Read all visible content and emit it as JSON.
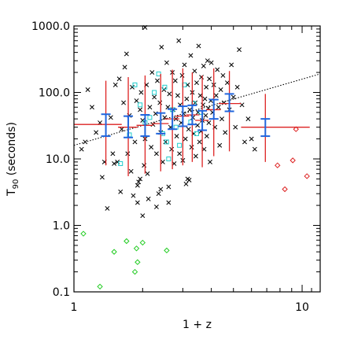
{
  "chart_data": {
    "type": "scatter",
    "xscale": "log",
    "yscale": "log",
    "xlim": [
      1,
      12
    ],
    "ylim": [
      0.1,
      1000
    ],
    "xlabel": "1 + z",
    "ylabel_main": "T",
    "ylabel_sub": "90",
    "ylabel_rest": " (seconds)",
    "xticks": [
      {
        "value": 1,
        "label": "1"
      },
      {
        "value": 10,
        "label": "10"
      }
    ],
    "yticks": [
      {
        "value": 0.1,
        "label": "0.1"
      },
      {
        "value": 1,
        "label": "1.0"
      },
      {
        "value": 10,
        "label": "10.0"
      },
      {
        "value": 100,
        "label": "100.0"
      },
      {
        "value": 1000,
        "label": "1000.0"
      }
    ],
    "grid": false,
    "colors": {
      "cross": "#000000",
      "cyan": "#22cccc",
      "green": "#22cc22",
      "red_marker": "#dd2222",
      "red_bar": "#dd2222",
      "blue_bar": "#2266dd",
      "fit": "#000000"
    },
    "fit_line": {
      "x": [
        1,
        12
      ],
      "y": [
        16,
        190
      ]
    },
    "series": [
      {
        "marker": "cross",
        "points": [
          [
            1.08,
            14
          ],
          [
            1.12,
            18
          ],
          [
            1.15,
            110
          ],
          [
            1.2,
            60
          ],
          [
            1.25,
            25
          ],
          [
            1.3,
            35
          ],
          [
            1.33,
            5.3
          ],
          [
            1.36,
            9
          ],
          [
            1.4,
            1.8
          ],
          [
            1.45,
            42
          ],
          [
            1.48,
            12
          ],
          [
            1.5,
            8.5
          ],
          [
            1.52,
            130
          ],
          [
            1.55,
            9
          ],
          [
            1.58,
            160
          ],
          [
            1.6,
            3.2
          ],
          [
            1.62,
            28
          ],
          [
            1.65,
            70
          ],
          [
            1.67,
            240
          ],
          [
            1.7,
            380
          ],
          [
            1.72,
            12
          ],
          [
            1.75,
            45
          ],
          [
            1.78,
            6.5
          ],
          [
            1.8,
            120
          ],
          [
            1.82,
            2.8
          ],
          [
            1.85,
            18
          ],
          [
            1.88,
            75
          ],
          [
            1.9,
            4
          ],
          [
            1.92,
            4.5
          ],
          [
            1.95,
            55
          ],
          [
            1.97,
            100
          ],
          [
            2.0,
            38
          ],
          [
            2.03,
            8
          ],
          [
            2.05,
            20
          ],
          [
            2.08,
            130
          ],
          [
            2.1,
            6
          ],
          [
            2.12,
            2.5
          ],
          [
            2.15,
            60
          ],
          [
            2.18,
            15
          ],
          [
            2.2,
            200
          ],
          [
            2.22,
            33
          ],
          [
            2.25,
            85
          ],
          [
            2.28,
            48
          ],
          [
            2.3,
            12
          ],
          [
            2.32,
            150
          ],
          [
            2.35,
            3
          ],
          [
            2.38,
            70
          ],
          [
            2.4,
            25
          ],
          [
            2.42,
            480
          ],
          [
            2.45,
            9
          ],
          [
            2.48,
            110
          ],
          [
            2.5,
            42
          ],
          [
            2.52,
            18
          ],
          [
            2.55,
            280
          ],
          [
            2.58,
            60
          ],
          [
            2.6,
            2.2
          ],
          [
            2.62,
            95
          ],
          [
            2.65,
            30
          ],
          [
            2.68,
            14
          ],
          [
            2.7,
            200
          ],
          [
            2.72,
            55
          ],
          [
            2.75,
            8.5
          ],
          [
            2.78,
            150
          ],
          [
            2.8,
            40
          ],
          [
            2.82,
            22
          ],
          [
            2.85,
            90
          ],
          [
            2.88,
            600
          ],
          [
            2.9,
            12
          ],
          [
            2.92,
            65
          ],
          [
            2.95,
            35
          ],
          [
            2.98,
            180
          ],
          [
            3.0,
            9.5
          ],
          [
            3.02,
            48
          ],
          [
            3.05,
            260
          ],
          [
            3.08,
            20
          ],
          [
            3.1,
            4.2
          ],
          [
            3.12,
            80
          ],
          [
            3.15,
            130
          ],
          [
            3.18,
            28
          ],
          [
            3.2,
            4.8
          ],
          [
            3.22,
            55
          ],
          [
            3.25,
            360
          ],
          [
            3.28,
            15
          ],
          [
            3.3,
            100
          ],
          [
            3.32,
            42
          ],
          [
            3.35,
            24
          ],
          [
            3.38,
            210
          ],
          [
            3.4,
            70
          ],
          [
            3.42,
            11
          ],
          [
            3.45,
            140
          ],
          [
            3.48,
            32
          ],
          [
            3.5,
            50
          ],
          [
            3.52,
            500
          ],
          [
            3.55,
            18
          ],
          [
            3.58,
            90
          ],
          [
            3.6,
            26
          ],
          [
            3.62,
            170
          ],
          [
            3.65,
            38
          ],
          [
            3.68,
            65
          ],
          [
            3.7,
            250
          ],
          [
            3.72,
            14
          ],
          [
            3.75,
            80
          ],
          [
            3.78,
            45
          ],
          [
            3.8,
            120
          ],
          [
            3.82,
            22
          ],
          [
            3.85,
            300
          ],
          [
            3.88,
            58
          ],
          [
            3.9,
            35
          ],
          [
            3.92,
            160
          ],
          [
            3.95,
            9
          ],
          [
            3.98,
            75
          ],
          [
            4.0,
            280
          ],
          [
            4.05,
            50
          ],
          [
            4.1,
            130
          ],
          [
            4.15,
            30
          ],
          [
            4.2,
            90
          ],
          [
            4.25,
            220
          ],
          [
            4.3,
            60
          ],
          [
            4.35,
            16
          ],
          [
            4.4,
            110
          ],
          [
            4.45,
            40
          ],
          [
            4.5,
            180
          ],
          [
            4.55,
            70
          ],
          [
            4.6,
            25
          ],
          [
            4.7,
            140
          ],
          [
            4.8,
            55
          ],
          [
            4.9,
            260
          ],
          [
            5.0,
            85
          ],
          [
            5.1,
            30
          ],
          [
            5.2,
            120
          ],
          [
            5.3,
            440
          ],
          [
            5.45,
            65
          ],
          [
            5.6,
            18
          ],
          [
            5.8,
            40
          ],
          [
            6.0,
            20
          ],
          [
            6.2,
            14
          ],
          [
            2.05,
            950
          ],
          [
            1.95,
            5
          ],
          [
            2.4,
            3.5
          ],
          [
            3.15,
            5
          ],
          [
            1.9,
            2.2
          ],
          [
            2.3,
            1.9
          ],
          [
            2.6,
            3.8
          ],
          [
            2.0,
            1.4
          ]
        ]
      },
      {
        "marker": "cyan-square",
        "points": [
          [
            1.6,
            8.5
          ],
          [
            1.75,
            23
          ],
          [
            1.85,
            130
          ],
          [
            1.95,
            65
          ],
          [
            2.05,
            35
          ],
          [
            2.25,
            100
          ],
          [
            2.35,
            190
          ],
          [
            2.45,
            24
          ],
          [
            2.55,
            18
          ],
          [
            2.6,
            10
          ],
          [
            2.7,
            55
          ],
          [
            2.8,
            30
          ],
          [
            2.9,
            16
          ],
          [
            3.05,
            130
          ],
          [
            3.25,
            36
          ],
          [
            3.45,
            24
          ],
          [
            3.6,
            50
          ],
          [
            2.15,
            42
          ],
          [
            3.35,
            68
          ],
          [
            2.5,
            120
          ]
        ]
      },
      {
        "marker": "green-diamond",
        "points": [
          [
            1.1,
            0.75
          ],
          [
            1.3,
            0.12
          ],
          [
            1.5,
            0.4
          ],
          [
            1.7,
            0.58
          ],
          [
            1.85,
            0.2
          ],
          [
            1.88,
            0.45
          ],
          [
            1.9,
            0.28
          ],
          [
            2.0,
            0.55
          ],
          [
            2.55,
            0.42
          ]
        ]
      },
      {
        "marker": "red-diamond",
        "points": [
          [
            7.8,
            8
          ],
          [
            8.4,
            3.5
          ],
          [
            9.1,
            9.5
          ],
          [
            9.4,
            28
          ],
          [
            10.5,
            5.5
          ]
        ]
      }
    ],
    "binned": [
      {
        "x": 1.38,
        "x_lo": 1.0,
        "x_hi": 1.62,
        "y": 33,
        "y_lo": 8,
        "y_hi": 150,
        "blue_lo": 22,
        "blue_hi": 47
      },
      {
        "x": 1.73,
        "x_lo": 1.56,
        "x_hi": 1.9,
        "y": 30,
        "y_lo": 5.5,
        "y_hi": 170,
        "blue_lo": 21,
        "blue_hi": 44
      },
      {
        "x": 2.05,
        "x_lo": 1.88,
        "x_hi": 2.22,
        "y": 32,
        "y_lo": 6,
        "y_hi": 180,
        "blue_lo": 22,
        "blue_hi": 46
      },
      {
        "x": 2.4,
        "x_lo": 2.2,
        "x_hi": 2.6,
        "y": 34,
        "y_lo": 6.5,
        "y_hi": 190,
        "blue_lo": 24,
        "blue_hi": 49
      },
      {
        "x": 2.7,
        "x_lo": 2.5,
        "x_hi": 2.9,
        "y": 40,
        "y_lo": 7,
        "y_hi": 220,
        "blue_lo": 28,
        "blue_hi": 56
      },
      {
        "x": 3.0,
        "x_lo": 2.78,
        "x_hi": 3.2,
        "y": 44,
        "y_lo": 8,
        "y_hi": 230,
        "blue_lo": 31,
        "blue_hi": 62
      },
      {
        "x": 3.3,
        "x_lo": 3.1,
        "x_hi": 3.55,
        "y": 46,
        "y_lo": 9,
        "y_hi": 200,
        "blue_lo": 33,
        "blue_hi": 64
      },
      {
        "x": 3.65,
        "x_lo": 3.4,
        "x_hi": 3.9,
        "y": 38,
        "y_lo": 7.5,
        "y_hi": 180,
        "blue_lo": 27,
        "blue_hi": 53
      },
      {
        "x": 4.1,
        "x_lo": 3.8,
        "x_hi": 4.4,
        "y": 55,
        "y_lo": 11,
        "y_hi": 230,
        "blue_lo": 40,
        "blue_hi": 78
      },
      {
        "x": 4.8,
        "x_lo": 4.3,
        "x_hi": 5.4,
        "y": 68,
        "y_lo": 13,
        "y_hi": 210,
        "blue_lo": 52,
        "blue_hi": 95
      },
      {
        "x": 6.9,
        "x_lo": 5.4,
        "x_hi": 10.8,
        "y": 30,
        "y_lo": 9,
        "y_hi": 95,
        "blue_lo": 22,
        "blue_hi": 40
      }
    ]
  }
}
